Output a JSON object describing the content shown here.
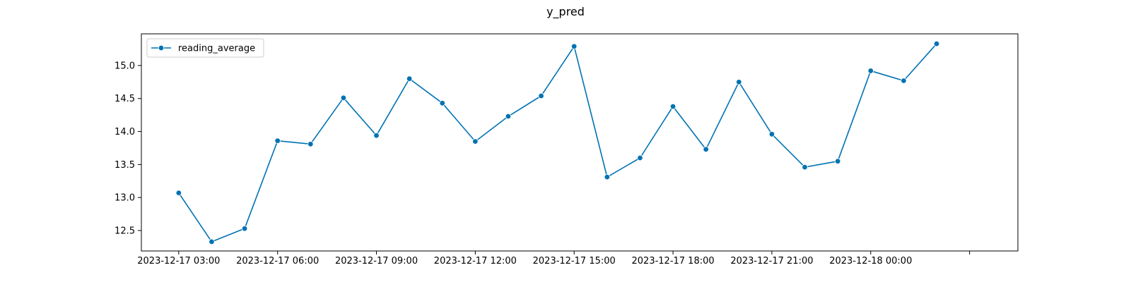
{
  "chart_data": {
    "type": "line",
    "title": "y_pred",
    "xlabel": "",
    "ylabel": "",
    "grid": false,
    "legend_position": "top-left",
    "x_tick_labels": [
      "2023-12-17 03:00",
      "2023-12-17 06:00",
      "2023-12-17 09:00",
      "2023-12-17 12:00",
      "2023-12-17 15:00",
      "2023-12-17 18:00",
      "2023-12-17 21:00",
      "2023-12-18 00:00"
    ],
    "y_tick_labels": [
      "12.5",
      "13.0",
      "13.5",
      "14.0",
      "14.5",
      "15.0"
    ],
    "x_range": [
      "2023-12-17 01:52",
      "2023-12-18 04:28"
    ],
    "y_range": [
      12.19,
      15.48
    ],
    "series": [
      {
        "name": "reading_average",
        "color": "#0072b2",
        "marker": "circle",
        "points": [
          {
            "x": "2023-12-17 03:00",
            "y": 13.07
          },
          {
            "x": "2023-12-17 04:00",
            "y": 12.33
          },
          {
            "x": "2023-12-17 05:00",
            "y": 12.53
          },
          {
            "x": "2023-12-17 06:00",
            "y": 13.86
          },
          {
            "x": "2023-12-17 07:00",
            "y": 13.81
          },
          {
            "x": "2023-12-17 08:00",
            "y": 14.51
          },
          {
            "x": "2023-12-17 09:00",
            "y": 13.94
          },
          {
            "x": "2023-12-17 10:00",
            "y": 14.8
          },
          {
            "x": "2023-12-17 11:00",
            "y": 14.43
          },
          {
            "x": "2023-12-17 12:00",
            "y": 13.85
          },
          {
            "x": "2023-12-17 13:00",
            "y": 14.23
          },
          {
            "x": "2023-12-17 14:00",
            "y": 14.54
          },
          {
            "x": "2023-12-17 15:00",
            "y": 15.29
          },
          {
            "x": "2023-12-17 16:00",
            "y": 13.31
          },
          {
            "x": "2023-12-17 17:00",
            "y": 13.6
          },
          {
            "x": "2023-12-17 18:00",
            "y": 14.38
          },
          {
            "x": "2023-12-17 19:00",
            "y": 13.73
          },
          {
            "x": "2023-12-17 20:00",
            "y": 14.75
          },
          {
            "x": "2023-12-17 21:00",
            "y": 13.96
          },
          {
            "x": "2023-12-17 22:00",
            "y": 13.46
          },
          {
            "x": "2023-12-17 23:00",
            "y": 13.55
          },
          {
            "x": "2023-12-18 00:00",
            "y": 14.92
          },
          {
            "x": "2023-12-18 01:00",
            "y": 14.77
          },
          {
            "x": "2023-12-18 02:00",
            "y": 15.33
          }
        ]
      }
    ]
  }
}
